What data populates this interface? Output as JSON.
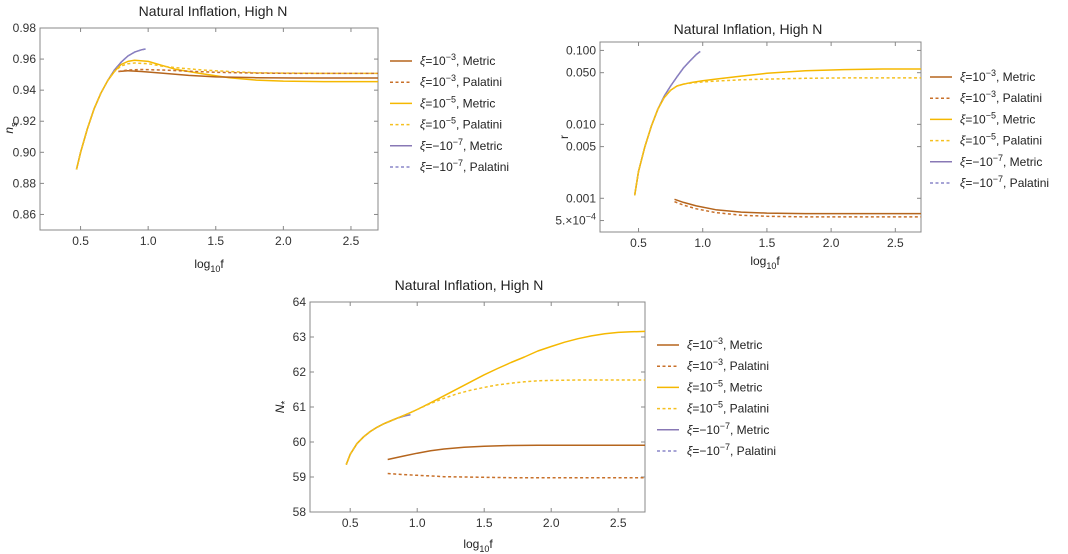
{
  "colors": {
    "metric_1e3": "#b5651d",
    "palatini_1e3": "#c8702a",
    "metric_1e5": "#f5b800",
    "palatini_1e5": "#f5c020",
    "metric_m1e7": "#8878b5",
    "palatini_m1e7": "#8a86c8"
  },
  "chart_data": [
    {
      "type": "line",
      "title": "Natural Inflation, High N",
      "xlabel_main": "log",
      "xlabel_sub": "10",
      "xlabel_tail": "f",
      "ylabel_main": "n",
      "ylabel_sub": "s",
      "xlim": [
        0.2,
        2.7
      ],
      "ylim": [
        0.85,
        0.98
      ],
      "xticks": [
        "0.5",
        "1.0",
        "1.5",
        "2.0",
        "2.5"
      ],
      "xtick_values": [
        0.5,
        1.0,
        1.5,
        2.0,
        2.5
      ],
      "yticks": [
        "0.86",
        "0.88",
        "0.90",
        "0.92",
        "0.94",
        "0.96",
        "0.98"
      ],
      "ytick_values": [
        0.86,
        0.88,
        0.9,
        0.92,
        0.94,
        0.96,
        0.98
      ],
      "legend": [
        {
          "label": "ξ=10",
          "sup": "−3",
          "tail": ", Metric",
          "style": "solid",
          "color_key": "metric_1e3"
        },
        {
          "label": "ξ=10",
          "sup": "−3",
          "tail": ", Palatini",
          "style": "dashed",
          "color_key": "palatini_1e3"
        },
        {
          "label": "ξ=10",
          "sup": "−5",
          "tail": ", Metric",
          "style": "solid",
          "color_key": "metric_1e5"
        },
        {
          "label": "ξ=10",
          "sup": "−5",
          "tail": ", Palatini",
          "style": "dashed",
          "color_key": "palatini_1e5"
        },
        {
          "label": "ξ=−10",
          "sup": "−7",
          "tail": ", Metric",
          "style": "solid",
          "color_key": "metric_m1e7"
        },
        {
          "label": "ξ=−10",
          "sup": "−7",
          "tail": ", Palatini",
          "style": "dashed",
          "color_key": "palatini_m1e7"
        }
      ],
      "series": [
        {
          "name": "ξ=10^-3, Metric",
          "style": "solid",
          "color_key": "metric_1e3",
          "x": [
            0.78,
            0.85,
            0.95,
            1.1,
            1.3,
            1.5,
            1.8,
            2.1,
            2.4,
            2.7
          ],
          "y": [
            0.952,
            0.9525,
            0.952,
            0.951,
            0.9495,
            0.9485,
            0.948,
            0.9478,
            0.9478,
            0.9478
          ]
        },
        {
          "name": "ξ=10^-3, Palatini",
          "style": "dashed",
          "color_key": "palatini_1e3",
          "x": [
            0.78,
            0.85,
            0.95,
            1.1,
            1.3,
            1.5,
            1.8,
            2.1,
            2.4,
            2.7
          ],
          "y": [
            0.952,
            0.953,
            0.9533,
            0.953,
            0.9522,
            0.9515,
            0.951,
            0.9508,
            0.9508,
            0.9508
          ]
        },
        {
          "name": "ξ=10^-5, Metric",
          "style": "solid",
          "color_key": "metric_1e5",
          "x": [
            0.47,
            0.5,
            0.55,
            0.6,
            0.65,
            0.7,
            0.75,
            0.8,
            0.85,
            0.9,
            1.0,
            1.1,
            1.2,
            1.4,
            1.6,
            1.8,
            2.0,
            2.3,
            2.7
          ],
          "y": [
            0.889,
            0.9,
            0.915,
            0.928,
            0.938,
            0.946,
            0.952,
            0.9565,
            0.9585,
            0.9593,
            0.9585,
            0.956,
            0.9535,
            0.9505,
            0.948,
            0.9465,
            0.9458,
            0.9455,
            0.9455
          ]
        },
        {
          "name": "ξ=10^-5, Palatini",
          "style": "dashed",
          "color_key": "palatini_1e5",
          "x": [
            0.47,
            0.5,
            0.55,
            0.6,
            0.65,
            0.7,
            0.75,
            0.8,
            0.85,
            0.9,
            1.0,
            1.1,
            1.2,
            1.4,
            1.6,
            1.8,
            2.0,
            2.3,
            2.7
          ],
          "y": [
            0.889,
            0.9,
            0.915,
            0.928,
            0.938,
            0.946,
            0.952,
            0.9555,
            0.957,
            0.9575,
            0.957,
            0.9555,
            0.9545,
            0.953,
            0.952,
            0.9512,
            0.951,
            0.9508,
            0.9508
          ]
        },
        {
          "name": "ξ=-10^-7, Metric",
          "style": "solid",
          "color_key": "metric_m1e7",
          "x": [
            0.47,
            0.5,
            0.55,
            0.6,
            0.65,
            0.7,
            0.75,
            0.8,
            0.85,
            0.9,
            0.95,
            0.98
          ],
          "y": [
            0.889,
            0.9,
            0.915,
            0.928,
            0.938,
            0.946,
            0.953,
            0.958,
            0.962,
            0.9645,
            0.966,
            0.9665
          ]
        },
        {
          "name": "ξ=-10^-7, Palatini",
          "style": "dashed",
          "color_key": "palatini_m1e7",
          "x": [
            0.47,
            0.5,
            0.55,
            0.6,
            0.65,
            0.7,
            0.75,
            0.8,
            0.85,
            0.9,
            0.95,
            0.98
          ],
          "y": [
            0.889,
            0.9,
            0.915,
            0.928,
            0.938,
            0.946,
            0.953,
            0.958,
            0.962,
            0.9645,
            0.966,
            0.9665
          ]
        }
      ]
    },
    {
      "type": "line",
      "title": "Natural Inflation, High N",
      "xlabel_main": "log",
      "xlabel_sub": "10",
      "xlabel_tail": "f",
      "ylabel_main": "r",
      "ylabel_sub": "",
      "yscale": "log",
      "xlim": [
        0.2,
        2.7
      ],
      "ylim": [
        0.00035,
        0.13
      ],
      "xticks": [
        "0.5",
        "1.0",
        "1.5",
        "2.0",
        "2.5"
      ],
      "xtick_values": [
        0.5,
        1.0,
        1.5,
        2.0,
        2.5
      ],
      "yticks": [
        "0.100",
        "0.050",
        "0.010",
        "0.005",
        "0.001"
      ],
      "ytick_values": [
        0.1,
        0.05,
        0.01,
        0.005,
        0.001
      ],
      "ytick_special": {
        "value": 0.0005,
        "base": "5.×10",
        "sup": "−4"
      },
      "legend": [
        {
          "label": "ξ=10",
          "sup": "−3",
          "tail": ", Metric",
          "style": "solid",
          "color_key": "metric_1e3"
        },
        {
          "label": "ξ=10",
          "sup": "−3",
          "tail": ", Palatini",
          "style": "dashed",
          "color_key": "palatini_1e3"
        },
        {
          "label": "ξ=10",
          "sup": "−5",
          "tail": ", Metric",
          "style": "solid",
          "color_key": "metric_1e5"
        },
        {
          "label": "ξ=10",
          "sup": "−5",
          "tail": ", Palatini",
          "style": "dashed",
          "color_key": "palatini_1e5"
        },
        {
          "label": "ξ=−10",
          "sup": "−7",
          "tail": ", Metric",
          "style": "solid",
          "color_key": "metric_m1e7"
        },
        {
          "label": "ξ=−10",
          "sup": "−7",
          "tail": ", Palatini",
          "style": "dashed",
          "color_key": "palatini_m1e7"
        }
      ],
      "series": [
        {
          "name": "ξ=10^-3, Metric",
          "style": "solid",
          "color_key": "metric_1e3",
          "x": [
            0.78,
            0.85,
            0.95,
            1.1,
            1.3,
            1.5,
            1.8,
            2.1,
            2.4,
            2.7
          ],
          "y": [
            0.00097,
            0.00088,
            0.00079,
            0.0007,
            0.00065,
            0.00063,
            0.00062,
            0.00062,
            0.00062,
            0.00062
          ]
        },
        {
          "name": "ξ=10^-3, Palatini",
          "style": "dashed",
          "color_key": "palatini_1e3",
          "x": [
            0.78,
            0.85,
            0.95,
            1.1,
            1.3,
            1.5,
            1.8,
            2.1,
            2.4,
            2.7
          ],
          "y": [
            0.0009,
            0.00081,
            0.00072,
            0.00064,
            0.00059,
            0.00057,
            0.00056,
            0.00056,
            0.00056,
            0.00056
          ]
        },
        {
          "name": "ξ=10^-5, Metric",
          "style": "solid",
          "color_key": "metric_1e5",
          "x": [
            0.47,
            0.5,
            0.55,
            0.6,
            0.65,
            0.7,
            0.75,
            0.8,
            0.85,
            0.9,
            1.0,
            1.1,
            1.3,
            1.5,
            1.8,
            2.1,
            2.4,
            2.7
          ],
          "y": [
            0.0011,
            0.0023,
            0.005,
            0.0095,
            0.016,
            0.023,
            0.029,
            0.033,
            0.035,
            0.0365,
            0.039,
            0.041,
            0.045,
            0.049,
            0.053,
            0.055,
            0.056,
            0.056
          ]
        },
        {
          "name": "ξ=10^-5, Palatini",
          "style": "dashed",
          "color_key": "palatini_1e5",
          "x": [
            0.47,
            0.5,
            0.55,
            0.6,
            0.65,
            0.7,
            0.75,
            0.8,
            0.85,
            0.9,
            1.0,
            1.1,
            1.3,
            1.5,
            1.8,
            2.1,
            2.4,
            2.7
          ],
          "y": [
            0.0011,
            0.0023,
            0.005,
            0.0095,
            0.016,
            0.023,
            0.029,
            0.033,
            0.035,
            0.036,
            0.0375,
            0.0385,
            0.04,
            0.041,
            0.042,
            0.0425,
            0.0425,
            0.0425
          ]
        },
        {
          "name": "ξ=-10^-7, Metric",
          "style": "solid",
          "color_key": "metric_m1e7",
          "x": [
            0.47,
            0.5,
            0.55,
            0.6,
            0.65,
            0.7,
            0.75,
            0.8,
            0.85,
            0.9,
            0.95,
            0.98
          ],
          "y": [
            0.0011,
            0.0023,
            0.005,
            0.0095,
            0.016,
            0.024,
            0.033,
            0.044,
            0.058,
            0.072,
            0.088,
            0.097
          ]
        },
        {
          "name": "ξ=-10^-7, Palatini",
          "style": "dashed",
          "color_key": "palatini_m1e7",
          "x": [
            0.47,
            0.5,
            0.55,
            0.6,
            0.65,
            0.7,
            0.75,
            0.8,
            0.85,
            0.9,
            0.95,
            0.98
          ],
          "y": [
            0.0011,
            0.0023,
            0.005,
            0.0095,
            0.016,
            0.024,
            0.033,
            0.044,
            0.058,
            0.072,
            0.088,
            0.097
          ]
        }
      ]
    },
    {
      "type": "line",
      "title": "Natural Inflation, High N",
      "xlabel_main": "log",
      "xlabel_sub": "10",
      "xlabel_tail": "f",
      "ylabel_main": "N",
      "ylabel_sub": "*",
      "xlim": [
        0.2,
        2.7
      ],
      "ylim": [
        58,
        64
      ],
      "xticks": [
        "0.5",
        "1.0",
        "1.5",
        "2.0",
        "2.5"
      ],
      "xtick_values": [
        0.5,
        1.0,
        1.5,
        2.0,
        2.5
      ],
      "yticks": [
        "58",
        "59",
        "60",
        "61",
        "62",
        "63",
        "64"
      ],
      "ytick_values": [
        58,
        59,
        60,
        61,
        62,
        63,
        64
      ],
      "legend": [
        {
          "label": "ξ=10",
          "sup": "−3",
          "tail": ", Metric",
          "style": "solid",
          "color_key": "metric_1e3"
        },
        {
          "label": "ξ=10",
          "sup": "−3",
          "tail": ", Palatini",
          "style": "dashed",
          "color_key": "palatini_1e3"
        },
        {
          "label": "ξ=10",
          "sup": "−5",
          "tail": ", Metric",
          "style": "solid",
          "color_key": "metric_1e5"
        },
        {
          "label": "ξ=10",
          "sup": "−5",
          "tail": ", Palatini",
          "style": "dashed",
          "color_key": "palatini_1e5"
        },
        {
          "label": "ξ=−10",
          "sup": "−7",
          "tail": ", Metric",
          "style": "solid",
          "color_key": "metric_m1e7"
        },
        {
          "label": "ξ=−10",
          "sup": "−7",
          "tail": ", Palatini",
          "style": "dashed",
          "color_key": "palatini_m1e7"
        }
      ],
      "series": [
        {
          "name": "ξ=10^-3, Metric",
          "style": "solid",
          "color_key": "metric_1e3",
          "x": [
            0.78,
            0.9,
            1.0,
            1.1,
            1.2,
            1.35,
            1.5,
            1.7,
            1.9,
            2.1,
            2.4,
            2.7
          ],
          "y": [
            59.5,
            59.6,
            59.68,
            59.75,
            59.8,
            59.85,
            59.88,
            59.9,
            59.91,
            59.91,
            59.91,
            59.91
          ]
        },
        {
          "name": "ξ=10^-3, Palatini",
          "style": "dashed",
          "color_key": "palatini_1e3",
          "x": [
            0.78,
            0.9,
            1.0,
            1.1,
            1.2,
            1.35,
            1.5,
            1.7,
            1.9,
            2.1,
            2.4,
            2.7
          ],
          "y": [
            59.1,
            59.07,
            59.05,
            59.03,
            59.01,
            59.0,
            58.99,
            58.98,
            58.98,
            58.98,
            58.98,
            58.98
          ]
        },
        {
          "name": "ξ=10^-5, Metric",
          "style": "solid",
          "color_key": "metric_1e5",
          "x": [
            0.47,
            0.5,
            0.55,
            0.6,
            0.65,
            0.7,
            0.75,
            0.8,
            0.85,
            0.9,
            0.95,
            1.0,
            1.1,
            1.2,
            1.3,
            1.4,
            1.5,
            1.6,
            1.7,
            1.8,
            1.9,
            2.0,
            2.1,
            2.2,
            2.3,
            2.4,
            2.5,
            2.6,
            2.7
          ],
          "y": [
            59.35,
            59.65,
            59.95,
            60.15,
            60.3,
            60.42,
            60.52,
            60.6,
            60.68,
            60.76,
            60.84,
            60.93,
            61.12,
            61.32,
            61.52,
            61.72,
            61.92,
            62.1,
            62.27,
            62.43,
            62.6,
            62.73,
            62.85,
            62.95,
            63.03,
            63.09,
            63.13,
            63.15,
            63.16
          ]
        },
        {
          "name": "ξ=10^-5, Palatini",
          "style": "dashed",
          "color_key": "palatini_1e5",
          "x": [
            0.47,
            0.5,
            0.55,
            0.6,
            0.65,
            0.7,
            0.75,
            0.8,
            0.85,
            0.9,
            0.95,
            1.0,
            1.1,
            1.2,
            1.3,
            1.4,
            1.5,
            1.6,
            1.7,
            1.8,
            1.9,
            2.0,
            2.2,
            2.4,
            2.7
          ],
          "y": [
            59.35,
            59.65,
            59.95,
            60.15,
            60.3,
            60.42,
            60.52,
            60.6,
            60.68,
            60.76,
            60.84,
            60.93,
            61.1,
            61.25,
            61.38,
            61.48,
            61.56,
            61.63,
            61.68,
            61.72,
            61.75,
            61.76,
            61.77,
            61.77,
            61.77
          ]
        },
        {
          "name": "ξ=-10^-7, Metric",
          "style": "solid",
          "color_key": "metric_m1e7",
          "x": [
            0.47,
            0.5,
            0.55,
            0.6,
            0.65,
            0.7,
            0.75,
            0.8,
            0.85,
            0.9,
            0.95
          ],
          "y": [
            59.35,
            59.65,
            59.95,
            60.15,
            60.3,
            60.42,
            60.52,
            60.6,
            60.68,
            60.74,
            60.78
          ]
        },
        {
          "name": "ξ=-10^-7, Palatini",
          "style": "dashed",
          "color_key": "palatini_m1e7",
          "x": [
            0.47,
            0.5,
            0.55,
            0.6,
            0.65,
            0.7,
            0.75,
            0.8,
            0.85,
            0.9,
            0.95
          ],
          "y": [
            59.35,
            59.65,
            59.95,
            60.15,
            60.3,
            60.42,
            60.52,
            60.6,
            60.68,
            60.74,
            60.78
          ]
        }
      ]
    }
  ]
}
